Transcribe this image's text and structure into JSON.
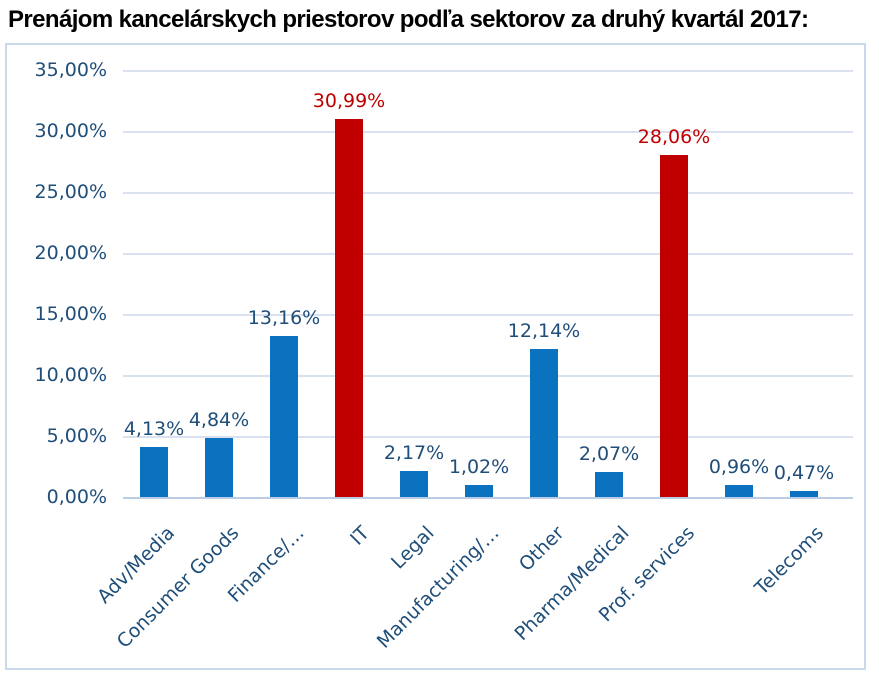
{
  "title": "Prenájom kancelárskych priestorov podľa sektorov za druhý kvartál 2017:",
  "chart_data": {
    "type": "bar",
    "title": "Prenájom kancelárskych priestorov podľa sektorov za druhý kvartál 2017:",
    "categories": [
      "Adv/Media",
      "Consumer Goods",
      "Finance/…",
      "IT",
      "Legal",
      "Manufacturing/…",
      "Other",
      "Pharma/Medical",
      "Prof. services",
      "",
      "Telecoms"
    ],
    "values": [
      4.13,
      4.84,
      13.16,
      30.99,
      2.17,
      1.02,
      12.14,
      2.07,
      28.06,
      0.96,
      0.47
    ],
    "value_labels": [
      "4,13%",
      "4,84%",
      "13,16%",
      "30,99%",
      "2,17%",
      "1,02%",
      "12,14%",
      "2,07%",
      "28,06%",
      "0,96%",
      "0,47%"
    ],
    "bar_color_keys": [
      "blue",
      "blue",
      "blue",
      "red",
      "blue",
      "blue",
      "blue",
      "blue",
      "red",
      "blue",
      "blue"
    ],
    "yticks": {
      "values": [
        0,
        5,
        10,
        15,
        20,
        25,
        30,
        35
      ],
      "labels": [
        "0,00%",
        "5,00%",
        "10,00%",
        "15,00%",
        "20,00%",
        "25,00%",
        "30,00%",
        "35,00%"
      ]
    },
    "ylim": [
      0,
      35
    ],
    "xlabel": "",
    "ylabel": "",
    "grid": true,
    "legend": "none",
    "colors": {
      "blue": "#0a72be",
      "red": "#c00000",
      "text_blue": "#1f4e79",
      "label_red": "#c00000",
      "gridline": "#d9e1f0",
      "axis_line": "#b9cde4",
      "frame_border": "#c9d8ea",
      "title_color": "#000000"
    }
  }
}
